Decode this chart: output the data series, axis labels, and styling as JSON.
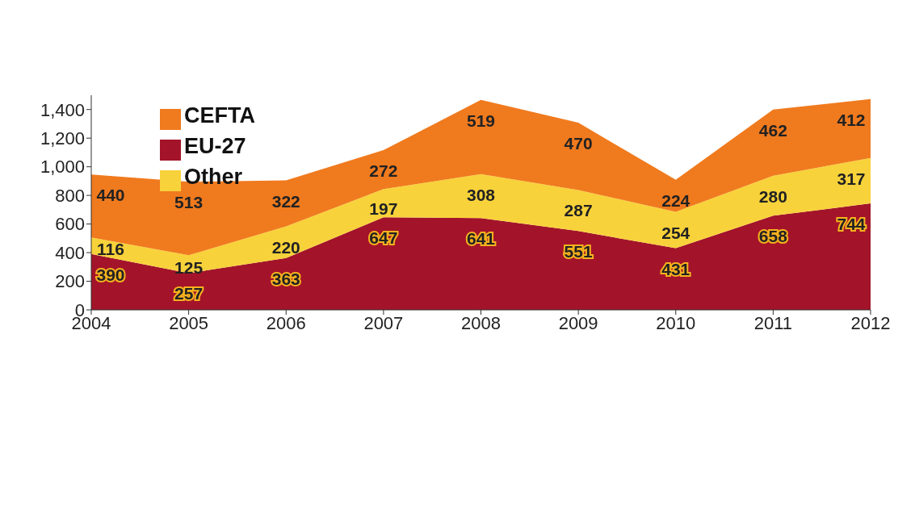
{
  "chart_data": {
    "type": "area",
    "stacked": true,
    "categories": [
      "2004",
      "2005",
      "2006",
      "2007",
      "2008",
      "2009",
      "2010",
      "2011",
      "2012"
    ],
    "series": [
      {
        "name": "EU-27",
        "color": "#a3142a",
        "values": [
          390,
          257,
          363,
          647,
          641,
          551,
          431,
          658,
          744
        ]
      },
      {
        "name": "Other",
        "color": "#f8d23a",
        "values": [
          116,
          125,
          220,
          197,
          308,
          287,
          254,
          280,
          317
        ]
      },
      {
        "name": "CEFTA",
        "color": "#f07a1e",
        "values": [
          440,
          513,
          322,
          272,
          519,
          470,
          224,
          462,
          412
        ]
      }
    ],
    "ylim": [
      0,
      1500
    ],
    "yticks": [
      0,
      200,
      400,
      600,
      800,
      {
        "value": 1000,
        "label": "1,000"
      },
      {
        "value": 1200,
        "label": "1,200"
      },
      {
        "value": 1400,
        "label": "1,400"
      }
    ],
    "data_labels": true,
    "legend": "top left",
    "grid": false
  }
}
